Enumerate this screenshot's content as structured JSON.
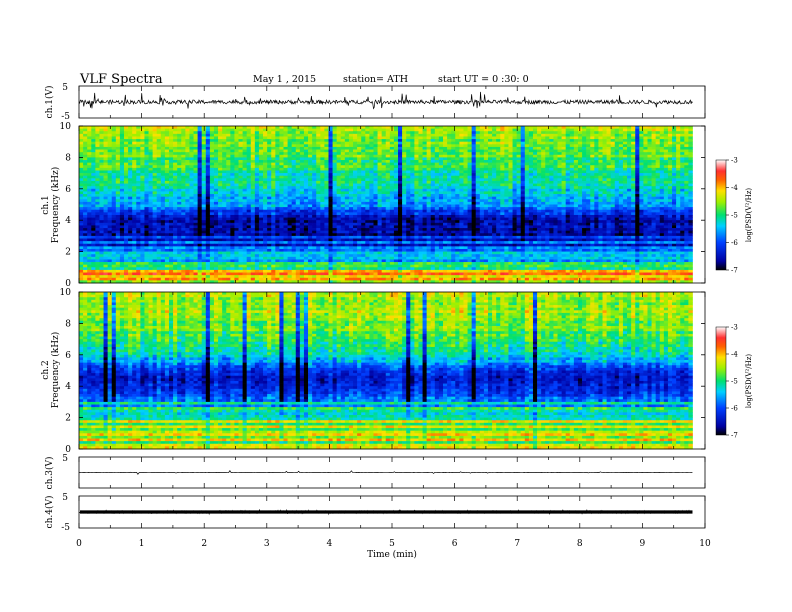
{
  "header": {
    "title": "VLF  Spectra",
    "date": "May 1  , 2015",
    "station": "station= ATH",
    "start": "start  UT =   0  :30: 0"
  },
  "xaxis": {
    "label": "Time  (min)",
    "ticks": [
      "0",
      "1",
      "2",
      "3",
      "4",
      "5",
      "6",
      "7",
      "8",
      "9",
      "10"
    ]
  },
  "chart_data": [
    {
      "type": "line",
      "name": "ch1-waveform",
      "ylabel": "ch.1(V)",
      "ylim": [
        -5,
        5
      ],
      "ticks": [
        "5",
        "-5"
      ],
      "xlim": [
        0,
        10
      ],
      "data_end_min": 9.8,
      "baseline": 0.0,
      "noise_amplitude": 0.6,
      "spike_amplitude": 2.8
    },
    {
      "type": "heatmap",
      "name": "ch1-spectrogram",
      "ylabel_top": "ch.1",
      "ylabel": "Frequency  (kHz)",
      "ylim": [
        0,
        10
      ],
      "yticks": [
        "0",
        "2",
        "4",
        "6",
        "8",
        "10"
      ],
      "xlim": [
        0,
        10
      ],
      "data_end_min": 9.8,
      "colorbar": {
        "label": "log(PSD(V²/Hz)",
        "range": [
          -7,
          -3
        ],
        "ticks": [
          "-3",
          "-4",
          "-5",
          "-6",
          "-7"
        ]
      },
      "profile": [
        {
          "f": 0.2,
          "v": -4.2
        },
        {
          "f": 0.5,
          "v": -3.6
        },
        {
          "f": 1.0,
          "v": -5.0
        },
        {
          "f": 2.0,
          "v": -5.8
        },
        {
          "f": 3.0,
          "v": -6.5
        },
        {
          "f": 4.0,
          "v": -6.6
        },
        {
          "f": 5.0,
          "v": -5.6
        },
        {
          "f": 6.0,
          "v": -5.2
        },
        {
          "f": 8.0,
          "v": -4.8
        },
        {
          "f": 10.0,
          "v": -4.5
        }
      ]
    },
    {
      "type": "heatmap",
      "name": "ch2-spectrogram",
      "ylabel_top": "ch.2",
      "ylabel": "Frequency  (kHz)",
      "ylim": [
        0,
        10
      ],
      "yticks": [
        "0",
        "2",
        "4",
        "6",
        "8",
        "10"
      ],
      "xlim": [
        0,
        10
      ],
      "data_end_min": 9.8,
      "colorbar": {
        "label": "log(PSD(V²/Hz)",
        "range": [
          -7,
          -3
        ],
        "ticks": [
          "-3",
          "-4",
          "-5",
          "-6",
          "-7"
        ]
      },
      "profile": [
        {
          "f": 0.2,
          "v": -4.6
        },
        {
          "f": 1.0,
          "v": -4.3
        },
        {
          "f": 2.0,
          "v": -4.8
        },
        {
          "f": 3.0,
          "v": -5.6
        },
        {
          "f": 4.0,
          "v": -6.3
        },
        {
          "f": 4.7,
          "v": -6.4
        },
        {
          "f": 5.5,
          "v": -5.6
        },
        {
          "f": 6.5,
          "v": -5.1
        },
        {
          "f": 8.0,
          "v": -4.6
        },
        {
          "f": 10.0,
          "v": -4.4
        }
      ]
    },
    {
      "type": "line",
      "name": "ch3-waveform",
      "ylabel": "ch.3(V)",
      "ylim": [
        -5,
        5
      ],
      "ticks": [
        "5"
      ],
      "xlim": [
        0,
        10
      ],
      "data_end_min": 9.8,
      "baseline": 0.0,
      "noise_amplitude": 0.05,
      "spike_amplitude": 0.6
    },
    {
      "type": "line",
      "name": "ch4-waveform",
      "ylabel": "ch.4(V)",
      "ylim": [
        -5,
        5
      ],
      "ticks": [
        "5",
        "-5"
      ],
      "xlim": [
        0,
        10
      ],
      "data_end_min": 9.8,
      "baseline": 0.0,
      "noise_amplitude": 0.35,
      "spike_amplitude": 0.5
    }
  ]
}
